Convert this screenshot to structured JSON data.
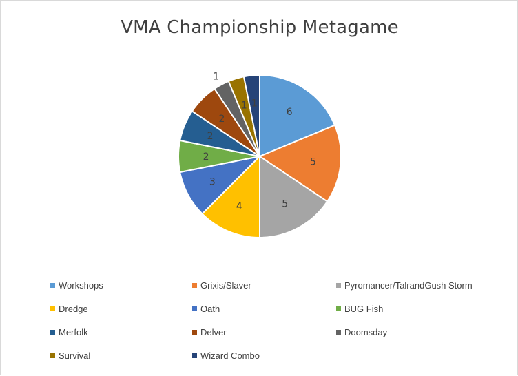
{
  "chart_data": {
    "type": "pie",
    "title": "VMA Championship Metagame",
    "categories": [
      "Workshops",
      "Grixis/Slaver",
      "Pyromancer/TalrandGush Storm",
      "Dredge",
      "Oath",
      "BUG Fish",
      "Merfolk",
      "Delver",
      "Doomsday",
      "Survival",
      "Wizard Combo"
    ],
    "values": [
      6,
      5,
      5,
      4,
      3,
      2,
      2,
      2,
      1,
      1,
      1
    ],
    "colors": [
      "#5b9bd5",
      "#ed7d31",
      "#a5a5a5",
      "#ffc000",
      "#4472c4",
      "#70ad47",
      "#255e91",
      "#9e480e",
      "#636363",
      "#997300",
      "#264478"
    ],
    "data_labels": [
      "6",
      "5",
      "5",
      "4",
      "3",
      "2",
      "2",
      "2",
      "1",
      "1",
      "1"
    ],
    "legend_position": "bottom"
  }
}
